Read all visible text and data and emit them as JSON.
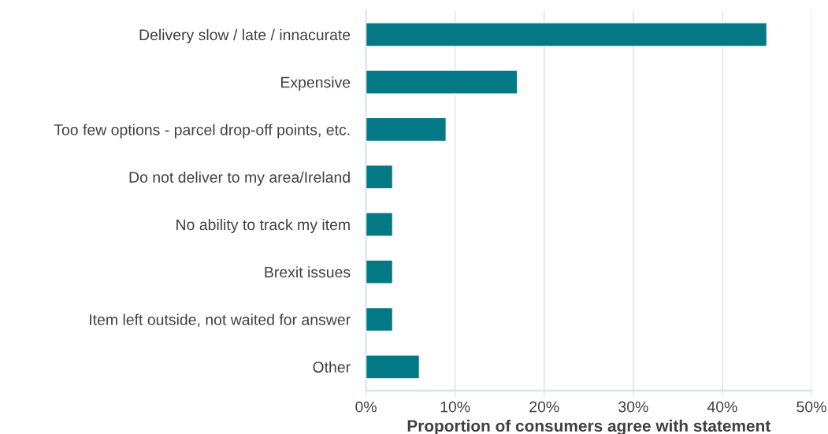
{
  "chart_data": {
    "type": "bar",
    "orientation": "horizontal",
    "xlabel": "Proportion of consumers agree with statement",
    "categories": [
      "Delivery slow / late / innacurate",
      "Expensive",
      "Too few options - parcel drop-off points, etc.",
      "Do not deliver to my area/Ireland",
      "No ability to track my item",
      "Brexit issues",
      "Item left outside, not waited for answer",
      "Other"
    ],
    "values": [
      45,
      17,
      9,
      3,
      3,
      3,
      3,
      6
    ],
    "color": "#037985",
    "xlim": [
      0,
      50
    ],
    "xticks": [
      {
        "value": 0,
        "label": "0%"
      },
      {
        "value": 10,
        "label": "10%"
      },
      {
        "value": 20,
        "label": "20%"
      },
      {
        "value": 30,
        "label": "30%"
      },
      {
        "value": 40,
        "label": "40%"
      },
      {
        "value": 50,
        "label": "50%"
      }
    ],
    "grid": "x",
    "legend": false
  }
}
